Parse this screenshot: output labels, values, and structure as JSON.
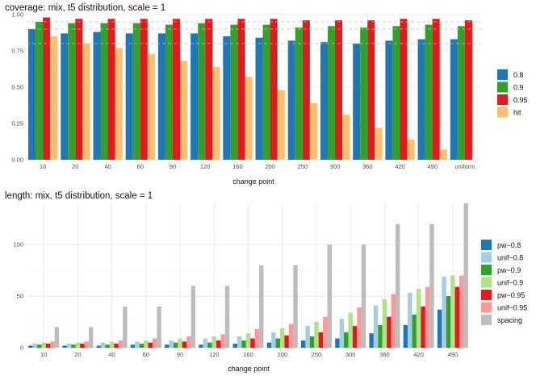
{
  "chart_data": [
    {
      "type": "bar",
      "title": "coverage: mix, t5 distribution, scale = 1",
      "xlabel": "change point",
      "ylabel": "",
      "ylim": [
        0,
        1.0
      ],
      "yticks": [
        0,
        0.25,
        0.5,
        0.75,
        1.0
      ],
      "ytick_labels": [
        "0.00",
        "0.25",
        "0.50",
        "0.75",
        "1.00"
      ],
      "reference_lines": [
        0.8,
        0.9,
        0.95
      ],
      "grid": true,
      "legend_position": "right",
      "categories": [
        "10",
        "20",
        "40",
        "60",
        "90",
        "120",
        "160",
        "200",
        "250",
        "300",
        "360",
        "420",
        "490",
        "uniform"
      ],
      "series": [
        {
          "name": "0.8",
          "color": "#1f78b4",
          "values": [
            0.9,
            0.87,
            0.88,
            0.87,
            0.87,
            0.87,
            0.85,
            0.84,
            0.82,
            0.81,
            0.8,
            0.82,
            0.83,
            0.83
          ]
        },
        {
          "name": "0.9",
          "color": "#33a02c",
          "values": [
            0.95,
            0.94,
            0.94,
            0.94,
            0.93,
            0.94,
            0.93,
            0.93,
            0.91,
            0.92,
            0.91,
            0.92,
            0.93,
            0.92
          ]
        },
        {
          "name": "0.95",
          "color": "#e31a1c",
          "values": [
            0.98,
            0.97,
            0.97,
            0.97,
            0.97,
            0.97,
            0.97,
            0.97,
            0.96,
            0.96,
            0.96,
            0.97,
            0.97,
            0.96
          ]
        },
        {
          "name": "hit",
          "color": "#fdbf6f",
          "values": [
            0.85,
            0.8,
            0.77,
            0.73,
            0.68,
            0.64,
            0.57,
            0.48,
            0.39,
            0.31,
            0.22,
            0.14,
            0.07,
            null
          ]
        }
      ]
    },
    {
      "type": "bar",
      "title": "length: mix, t5 distribution, scale = 1",
      "xlabel": "change point",
      "ylabel": "",
      "ylim": [
        0,
        140
      ],
      "yticks": [
        0,
        50,
        100
      ],
      "ytick_labels": [
        "0",
        "50",
        "100"
      ],
      "grid": true,
      "legend_position": "right",
      "categories": [
        "10",
        "20",
        "40",
        "60",
        "90",
        "120",
        "160",
        "200",
        "250",
        "300",
        "360",
        "420",
        "490"
      ],
      "series": [
        {
          "name": "pw−0.8",
          "color": "#1f78b4",
          "values": [
            2,
            2,
            2,
            3,
            3,
            3,
            4,
            5,
            7,
            9,
            14,
            22,
            37
          ]
        },
        {
          "name": "unif−0.8",
          "color": "#a6cee3",
          "values": [
            4,
            4,
            5,
            6,
            7,
            9,
            11,
            15,
            21,
            28,
            41,
            53,
            69
          ]
        },
        {
          "name": "pw−0.9",
          "color": "#33a02c",
          "values": [
            3,
            3,
            3,
            4,
            5,
            5,
            7,
            9,
            11,
            15,
            22,
            32,
            50
          ]
        },
        {
          "name": "unif−0.9",
          "color": "#b2df8a",
          "values": [
            5,
            5,
            6,
            7,
            9,
            11,
            14,
            19,
            25,
            34,
            47,
            57,
            70
          ]
        },
        {
          "name": "pw−0.95",
          "color": "#e31a1c",
          "values": [
            4,
            4,
            4,
            5,
            6,
            7,
            9,
            12,
            15,
            21,
            30,
            40,
            59
          ]
        },
        {
          "name": "unif−0.95",
          "color": "#fb9a99",
          "values": [
            6,
            6,
            7,
            9,
            11,
            13,
            18,
            23,
            30,
            39,
            52,
            59,
            70
          ]
        },
        {
          "name": "spacing",
          "color": "#bdbdbd",
          "values": [
            20,
            20,
            40,
            40,
            60,
            60,
            80,
            80,
            100,
            100,
            120,
            120,
            140
          ]
        }
      ]
    }
  ]
}
